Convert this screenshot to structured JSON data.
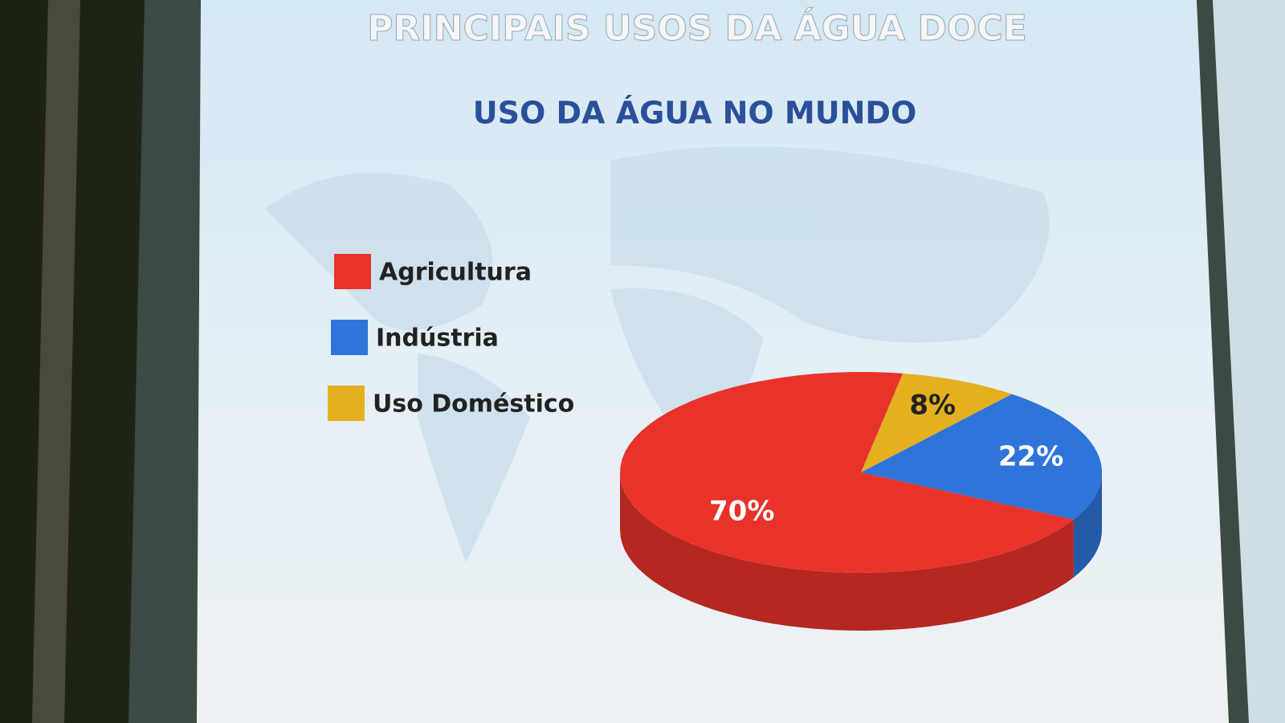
{
  "chart_data": {
    "type": "pie",
    "title": "PRINCIPAIS USOS DA ÁGUA DOCE",
    "subtitle": "USO DA ÁGUA NO MUNDO",
    "categories": [
      "Agricultura",
      "Indústria",
      "Uso Doméstico"
    ],
    "values": [
      70,
      22,
      8
    ],
    "value_labels": [
      "70%",
      "22%",
      "8%"
    ],
    "colors": [
      "#e8322a",
      "#2f74d9",
      "#e4b020"
    ]
  }
}
